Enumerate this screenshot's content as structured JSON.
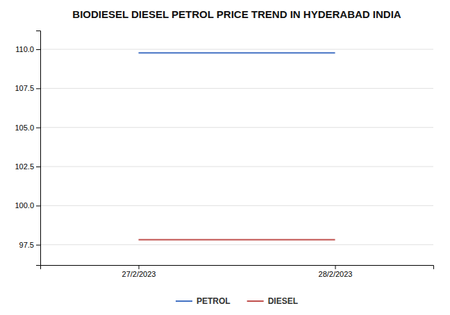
{
  "chart_data": {
    "type": "line",
    "title": "BIODIESEL DIESEL PETROL PRICE TREND IN HYDERABAD INDIA",
    "categories": [
      "27/2/2023",
      "28/2/2023"
    ],
    "series": [
      {
        "name": "PETROL",
        "color": "#4472C4",
        "values": [
          109.77,
          109.77
        ]
      },
      {
        "name": "DIESEL",
        "color": "#C0504D",
        "values": [
          97.82,
          97.82
        ]
      }
    ],
    "ylim": [
      96.2,
      111.2
    ],
    "yticks": [
      97.5,
      {
        "value": 100.0,
        "label": "100.0"
      },
      102.5,
      {
        "value": 105.0,
        "label": "105.0"
      },
      107.5,
      {
        "value": 110.0,
        "label": "110.0"
      }
    ],
    "grid": true,
    "legend": "bottom"
  }
}
